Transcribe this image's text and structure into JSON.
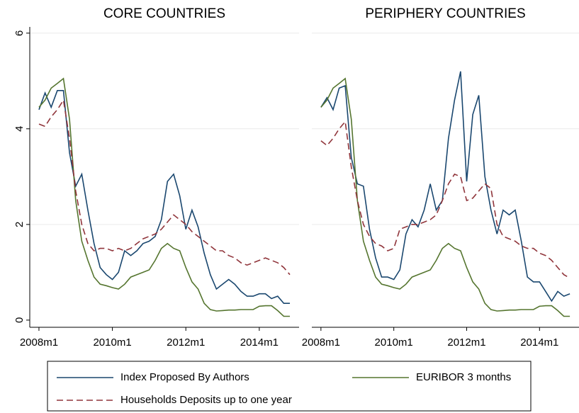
{
  "chart_data": [
    {
      "type": "line",
      "title": "CORE COUNTRIES",
      "x": [
        576,
        578,
        580,
        582,
        584,
        586,
        588,
        590,
        592,
        594,
        596,
        598,
        600,
        602,
        604,
        606,
        608,
        610,
        612,
        614,
        616,
        618,
        620,
        622,
        624,
        626,
        628,
        630,
        632,
        634,
        636,
        638,
        640,
        642,
        644,
        646,
        648,
        650,
        652,
        654,
        656,
        658
      ],
      "xlim": [
        573,
        661
      ],
      "xticks": [
        {
          "value": 576,
          "label": "2008m1"
        },
        {
          "value": 600,
          "label": "2010m1"
        },
        {
          "value": 624,
          "label": "2012m1"
        },
        {
          "value": 648,
          "label": "2014m1"
        }
      ],
      "ylim": [
        -0.15,
        6.13
      ],
      "yticks": [
        0,
        2,
        4,
        6
      ],
      "grid": true,
      "series": [
        {
          "name": "Index Proposed By Authors",
          "color": "#1a476f",
          "dash": false,
          "values": [
            4.4,
            4.75,
            4.45,
            4.8,
            4.8,
            3.5,
            2.8,
            3.05,
            2.3,
            1.6,
            1.1,
            0.95,
            0.85,
            1.0,
            1.45,
            1.35,
            1.45,
            1.6,
            1.65,
            1.75,
            2.1,
            2.9,
            3.05,
            2.6,
            1.9,
            2.3,
            1.95,
            1.4,
            0.95,
            0.65,
            0.75,
            0.85,
            0.75,
            0.6,
            0.5,
            0.5,
            0.55,
            0.55,
            0.45,
            0.5,
            0.35,
            0.35
          ]
        },
        {
          "name": "EURIBOR 3 months",
          "color": "#55752f",
          "dash": false,
          "values": [
            4.45,
            4.6,
            4.85,
            4.95,
            5.05,
            4.2,
            2.5,
            1.65,
            1.25,
            0.9,
            0.75,
            0.72,
            0.68,
            0.65,
            0.75,
            0.9,
            0.95,
            1.0,
            1.05,
            1.25,
            1.5,
            1.6,
            1.5,
            1.45,
            1.1,
            0.8,
            0.65,
            0.35,
            0.22,
            0.19,
            0.2,
            0.21,
            0.21,
            0.22,
            0.22,
            0.22,
            0.29,
            0.3,
            0.3,
            0.2,
            0.08,
            0.08
          ]
        },
        {
          "name": "Households Deposits up to one year",
          "color": "#90353b",
          "dash": true,
          "values": [
            4.1,
            4.05,
            4.25,
            4.4,
            4.6,
            3.8,
            2.7,
            2.0,
            1.6,
            1.45,
            1.5,
            1.5,
            1.45,
            1.5,
            1.45,
            1.5,
            1.6,
            1.7,
            1.75,
            1.8,
            1.9,
            2.05,
            2.2,
            2.1,
            2.0,
            1.85,
            1.75,
            1.65,
            1.55,
            1.45,
            1.45,
            1.35,
            1.3,
            1.2,
            1.15,
            1.2,
            1.25,
            1.3,
            1.25,
            1.2,
            1.1,
            0.95
          ]
        }
      ]
    },
    {
      "type": "line",
      "title": "PERIPHERY COUNTRIES",
      "x": [
        576,
        578,
        580,
        582,
        584,
        586,
        588,
        590,
        592,
        594,
        596,
        598,
        600,
        602,
        604,
        606,
        608,
        610,
        612,
        614,
        616,
        618,
        620,
        622,
        624,
        626,
        628,
        630,
        632,
        634,
        636,
        638,
        640,
        642,
        644,
        646,
        648,
        650,
        652,
        654,
        656,
        658
      ],
      "xlim": [
        573,
        661
      ],
      "xticks": [
        {
          "value": 576,
          "label": "2008m1"
        },
        {
          "value": 600,
          "label": "2010m1"
        },
        {
          "value": 624,
          "label": "2012m1"
        },
        {
          "value": 648,
          "label": "2014m1"
        }
      ],
      "ylim": [
        -0.15,
        6.13
      ],
      "yticks": [
        0,
        2,
        4,
        6
      ],
      "grid": true,
      "series": [
        {
          "color": "#1a476f",
          "dash": false,
          "values": [
            4.45,
            4.65,
            4.4,
            4.85,
            4.9,
            3.4,
            2.85,
            2.8,
            1.9,
            1.3,
            0.9,
            0.9,
            0.85,
            1.05,
            1.8,
            2.1,
            1.95,
            2.3,
            2.85,
            2.3,
            2.5,
            3.8,
            4.6,
            5.2,
            2.9,
            4.3,
            4.7,
            3.0,
            2.3,
            1.8,
            2.3,
            2.2,
            2.3,
            1.65,
            0.9,
            0.8,
            0.8,
            0.6,
            0.4,
            0.6,
            0.5,
            0.55
          ]
        },
        {
          "color": "#55752f",
          "dash": false,
          "values": [
            4.45,
            4.6,
            4.85,
            4.95,
            5.05,
            4.2,
            2.5,
            1.65,
            1.25,
            0.9,
            0.75,
            0.72,
            0.68,
            0.65,
            0.75,
            0.9,
            0.95,
            1.0,
            1.05,
            1.25,
            1.5,
            1.6,
            1.5,
            1.45,
            1.1,
            0.8,
            0.65,
            0.35,
            0.22,
            0.19,
            0.2,
            0.21,
            0.21,
            0.22,
            0.22,
            0.22,
            0.29,
            0.3,
            0.3,
            0.2,
            0.08,
            0.08
          ]
        },
        {
          "color": "#90353b",
          "dash": true,
          "values": [
            3.75,
            3.65,
            3.8,
            4.0,
            4.15,
            3.2,
            2.5,
            2.0,
            1.75,
            1.6,
            1.55,
            1.45,
            1.5,
            1.9,
            1.95,
            2.0,
            2.0,
            2.05,
            2.1,
            2.2,
            2.5,
            2.85,
            3.05,
            3.0,
            2.5,
            2.55,
            2.7,
            2.85,
            2.75,
            2.0,
            1.75,
            1.7,
            1.65,
            1.55,
            1.5,
            1.5,
            1.4,
            1.35,
            1.25,
            1.1,
            0.95,
            0.88
          ]
        }
      ]
    }
  ]
}
